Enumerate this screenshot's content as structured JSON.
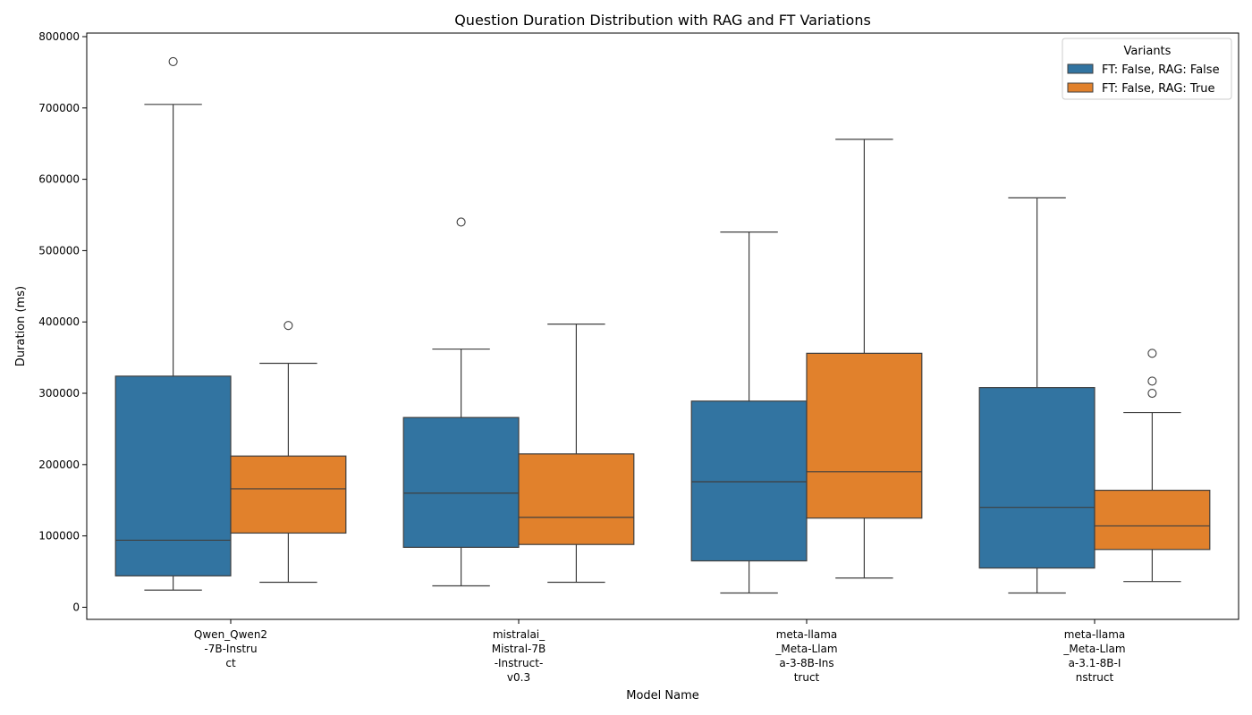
{
  "chart_data": {
    "type": "boxplot",
    "title": "Question Duration Distribution with RAG and FT Variations",
    "xlabel": "Model Name",
    "ylabel": "Duration (ms)",
    "ylim": [
      -17000,
      805000
    ],
    "yticks": [
      0,
      100000,
      200000,
      300000,
      400000,
      500000,
      600000,
      700000,
      800000
    ],
    "grid": false,
    "legend": {
      "title": "Variants",
      "placement": "top-right"
    },
    "categories": [
      [
        "Qwen_Qwen2",
        "-7B-Instru",
        "ct"
      ],
      [
        "mistralai_",
        "Mistral-7B",
        "-Instruct-",
        "v0.3"
      ],
      [
        "meta-llama",
        "_Meta-Llam",
        "a-3-8B-Ins",
        "truct"
      ],
      [
        "meta-llama",
        "_Meta-Llam",
        "a-3.1-8B-I",
        "nstruct"
      ]
    ],
    "series": [
      {
        "name": "FT: False, RAG: False",
        "color": "#3274a1",
        "boxes": [
          {
            "whisker_low": 24000,
            "q1": 44000,
            "median": 94000,
            "q3": 324000,
            "whisker_high": 705000,
            "outliers": [
              765000
            ]
          },
          {
            "whisker_low": 30000,
            "q1": 84000,
            "median": 160000,
            "q3": 266000,
            "whisker_high": 362000,
            "outliers": [
              540000
            ]
          },
          {
            "whisker_low": 20000,
            "q1": 65000,
            "median": 176000,
            "q3": 289000,
            "whisker_high": 526000,
            "outliers": []
          },
          {
            "whisker_low": 20000,
            "q1": 55000,
            "median": 140000,
            "q3": 308000,
            "whisker_high": 574000,
            "outliers": []
          }
        ]
      },
      {
        "name": "FT: False, RAG: True",
        "color": "#e1812c",
        "boxes": [
          {
            "whisker_low": 35000,
            "q1": 104000,
            "median": 166000,
            "q3": 212000,
            "whisker_high": 342000,
            "outliers": [
              395000
            ]
          },
          {
            "whisker_low": 35000,
            "q1": 88000,
            "median": 126000,
            "q3": 215000,
            "whisker_high": 397000,
            "outliers": []
          },
          {
            "whisker_low": 41000,
            "q1": 125000,
            "median": 190000,
            "q3": 356000,
            "whisker_high": 656000,
            "outliers": []
          },
          {
            "whisker_low": 36000,
            "q1": 81000,
            "median": 114000,
            "q3": 164000,
            "whisker_high": 273000,
            "outliers": [
              300000,
              317000,
              356000
            ]
          }
        ]
      }
    ]
  }
}
